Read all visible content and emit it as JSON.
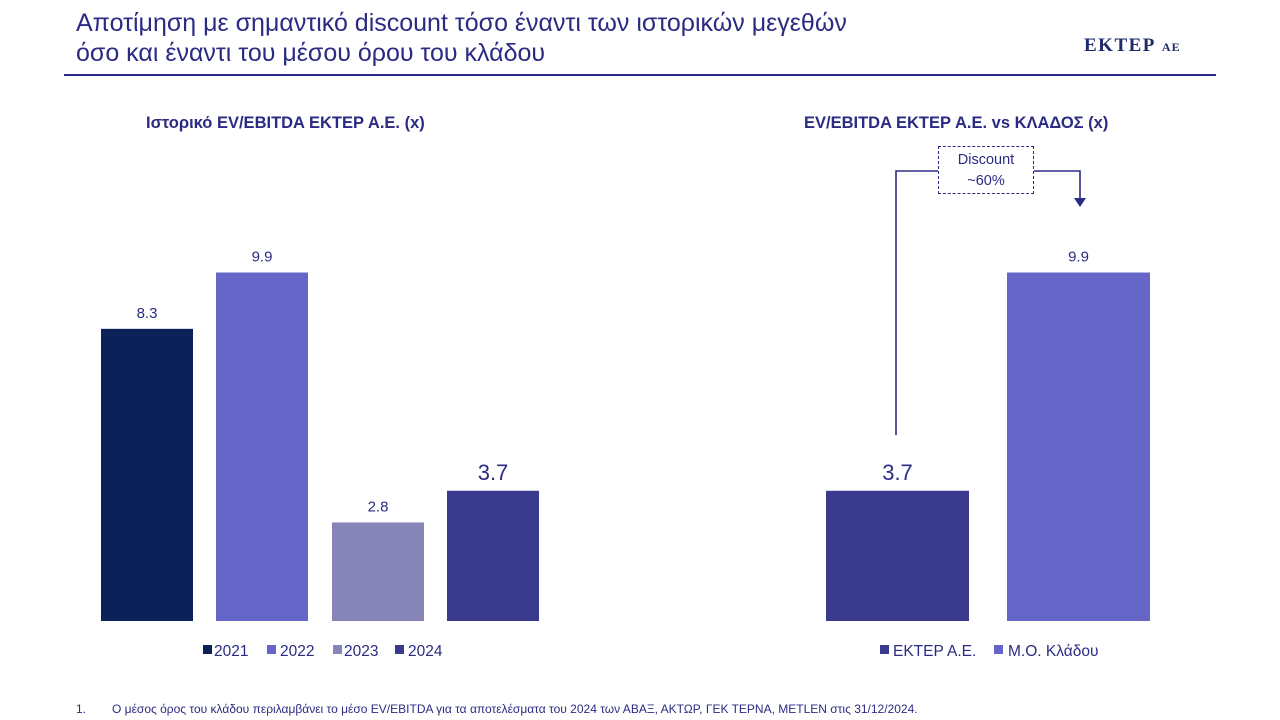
{
  "header": {
    "title_line1": "Αποτίμηση με σημαντικό discount τόσο έναντι των ιστορικών μεγεθών",
    "title_line2": "όσο και έναντι του μέσου όρου του κλάδου",
    "logo_main": "ΕΚΤΕΡ",
    "logo_suffix": "ΑΕ"
  },
  "callout": {
    "line1": "Discount",
    "line2": "~60%"
  },
  "footnote": {
    "number": "1.",
    "text": "Ο μέσος όρος του κλάδου περιλαμβάνει το μέσο EV/EBITDA για τα αποτελέσματα του 2024 των ΑΒΑΞ, ΑΚΤΩΡ, ΓΕΚ ΤΕΡΝΑ, METLEN στις 31/12/2024."
  },
  "colors": {
    "accent": "#2b2b83"
  },
  "chart_data": [
    {
      "type": "bar",
      "title": "Ιστορικό EV/EBITDA ΕΚΤΕΡ Α.Ε. (x)",
      "categories": [
        "2021",
        "2022",
        "2023",
        "2024"
      ],
      "values": [
        8.3,
        9.9,
        2.8,
        3.7
      ],
      "value_labels": [
        "8.3",
        "9.9",
        "2.8",
        "3.7"
      ],
      "colors": [
        "#0d2159",
        "#6666c8",
        "#8784b8",
        "#3a3a8f"
      ],
      "legend": [
        "2021",
        "2022",
        "2023",
        "2024"
      ],
      "legend_position": "bottom",
      "grid": false
    },
    {
      "type": "bar",
      "title": "EV/EBITDA ΕΚΤΕΡ Α.Ε. vs ΚΛΑΔΟΣ (x)",
      "categories": [
        "ΕΚΤΕΡ Α.Ε.",
        "Μ.Ο. Κλάδου"
      ],
      "values": [
        3.7,
        9.9
      ],
      "value_labels": [
        "3.7",
        "9.9"
      ],
      "colors": [
        "#3a3a8f",
        "#6666c8"
      ],
      "legend": [
        "ΕΚΤΕΡ Α.Ε.",
        "Μ.Ο. Κλάδου"
      ],
      "legend_position": "bottom",
      "grid": false,
      "annotation": "Discount ~60%"
    }
  ]
}
